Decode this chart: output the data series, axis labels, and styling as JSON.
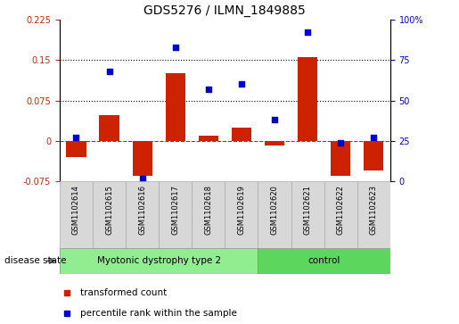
{
  "title": "GDS5276 / ILMN_1849885",
  "categories": [
    "GSM1102614",
    "GSM1102615",
    "GSM1102616",
    "GSM1102617",
    "GSM1102618",
    "GSM1102619",
    "GSM1102620",
    "GSM1102621",
    "GSM1102622",
    "GSM1102623"
  ],
  "bar_values": [
    -0.03,
    0.047,
    -0.065,
    0.125,
    0.01,
    0.025,
    -0.008,
    0.155,
    -0.065,
    -0.055
  ],
  "scatter_values": [
    27,
    68,
    2,
    83,
    57,
    60,
    38,
    92,
    24,
    27
  ],
  "left_ylim": [
    -0.075,
    0.225
  ],
  "left_yticks": [
    -0.075,
    0,
    0.075,
    0.15,
    0.225
  ],
  "left_yticklabels": [
    "-0.075",
    "0",
    "0.075",
    "0.15",
    "0.225"
  ],
  "right_ylim": [
    0,
    100
  ],
  "right_yticks": [
    0,
    25,
    50,
    75,
    100
  ],
  "right_yticklabels": [
    "0",
    "25",
    "50",
    "75",
    "100%"
  ],
  "bar_color": "#cc2200",
  "scatter_color": "#0000cc",
  "group1_label": "Myotonic dystrophy type 2",
  "group2_label": "control",
  "group1_indices": [
    0,
    1,
    2,
    3,
    4,
    5
  ],
  "group2_indices": [
    6,
    7,
    8,
    9
  ],
  "group1_color": "#90ee90",
  "group2_color": "#5cd65c",
  "label_box_color": "#d8d8d8",
  "disease_state_label": "disease state",
  "legend1_label": "transformed count",
  "legend2_label": "percentile rank within the sample",
  "hline_color": "#cc2200",
  "dotted_line_color": "#000000",
  "grid_values": [
    0.075,
    0.15
  ],
  "background_color": "#ffffff",
  "plot_bg_color": "#ffffff",
  "title_fontsize": 10
}
